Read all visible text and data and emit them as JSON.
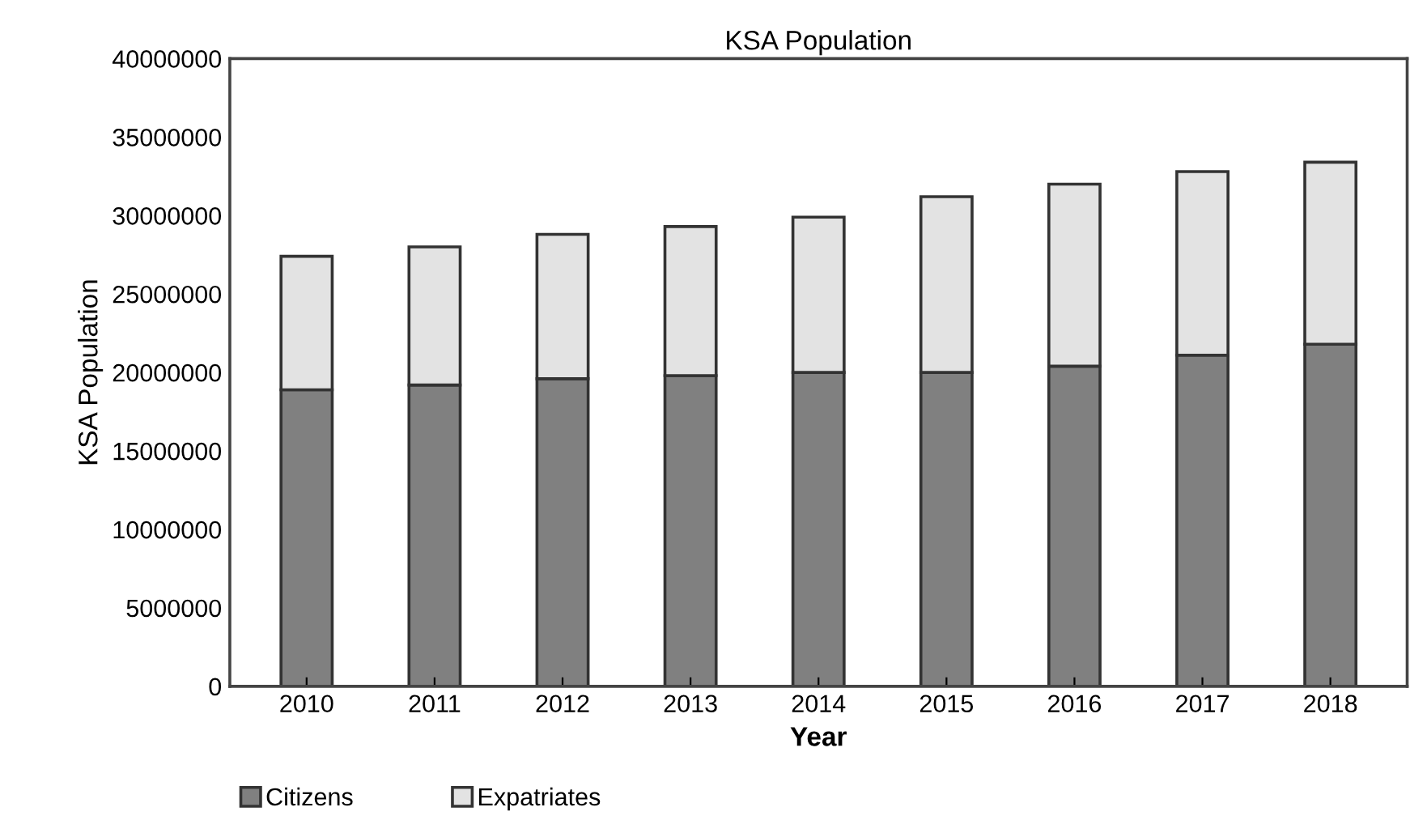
{
  "chart_data": {
    "type": "bar",
    "title": "KSA Population",
    "xlabel": "Year",
    "ylabel": "KSA Population",
    "categories": [
      "2010",
      "2011",
      "2012",
      "2013",
      "2014",
      "2015",
      "2016",
      "2017",
      "2018"
    ],
    "stacked": true,
    "series": [
      {
        "name": "Citizens",
        "color": "#808080",
        "values": [
          18900000,
          19200000,
          19600000,
          19800000,
          20000000,
          20000000,
          20400000,
          21100000,
          21800000
        ]
      },
      {
        "name": "Expatriates",
        "color": "#e3e3e3",
        "values": [
          8500000,
          8800000,
          9200000,
          9500000,
          9900000,
          11200000,
          11600000,
          11700000,
          11600000
        ]
      }
    ],
    "ylim": [
      0,
      40000000
    ],
    "yticks": [
      0,
      5000000,
      10000000,
      15000000,
      20000000,
      25000000,
      30000000,
      35000000,
      40000000
    ],
    "grid": false,
    "legend": "bottom left"
  }
}
